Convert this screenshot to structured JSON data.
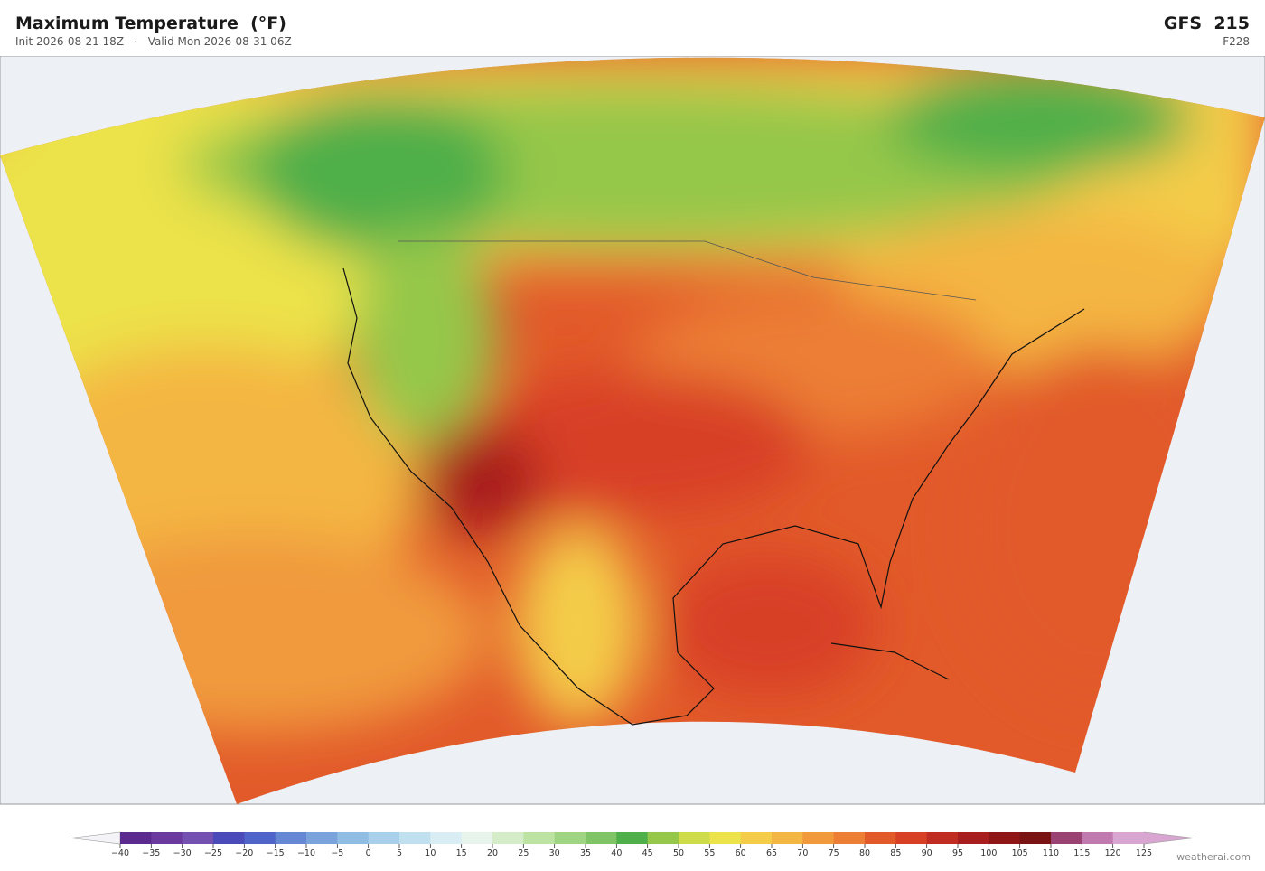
{
  "header": {
    "title": "Maximum Temperature  (°F)",
    "init": "Init 2026-08-21 18Z",
    "separator": "·",
    "valid": "Valid Mon 2026-08-31 06Z",
    "model": "GFS  215",
    "forecast": "F228"
  },
  "colorbar": {
    "lim": [
      -40,
      125
    ],
    "ticks": [
      {
        "value": -40,
        "label": "−40"
      },
      {
        "value": -35,
        "label": "−35"
      },
      {
        "value": -30,
        "label": "−30"
      },
      {
        "value": -25,
        "label": "−25"
      },
      {
        "value": -20,
        "label": "−20"
      },
      {
        "value": -15,
        "label": "−15"
      },
      {
        "value": -10,
        "label": "−10"
      },
      {
        "value": -5,
        "label": "−5"
      },
      0,
      5,
      10,
      15,
      20,
      25,
      30,
      35,
      40,
      45,
      50,
      55,
      60,
      65,
      70,
      75,
      80,
      85,
      90,
      95,
      100,
      105,
      110,
      115,
      120,
      125
    ],
    "colors": [
      "#5b2a8e",
      "#6b3a9e",
      "#7450b0",
      "#4a4ab8",
      "#4f63c8",
      "#6688d4",
      "#7aa3dc",
      "#8fbde4",
      "#a8d0ea",
      "#c0e0f0",
      "#d8eef4",
      "#e6f4ec",
      "#d4ecc8",
      "#bde3a3",
      "#9fd482",
      "#7fc566",
      "#4faf4a",
      "#95c74a",
      "#cfdc4a",
      "#ece24a",
      "#f4cc48",
      "#f4b642",
      "#f09a3c",
      "#ec7e36",
      "#e25a2a",
      "#d84026",
      "#c02c22",
      "#a81e1e",
      "#8e1616",
      "#7a1414",
      "#9a4272",
      "#c07ab0",
      "#d8a6d0"
    ],
    "under_color": "#f4f4f8",
    "over_color": "#d8a6d0"
  },
  "footer": {
    "credit": "weatherai.com"
  }
}
